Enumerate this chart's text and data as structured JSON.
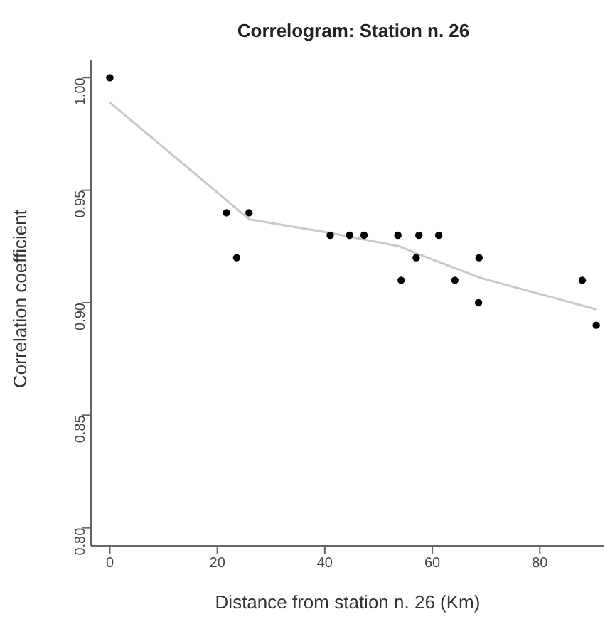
{
  "chart_data": {
    "type": "scatter",
    "title": "Correlogram: Station n. 26",
    "xlabel": "Distance from station n. 26 (Km)",
    "ylabel": "Correlation coefficient",
    "xlim": [
      -3.5,
      92
    ],
    "xticks": [
      0,
      20,
      40,
      60,
      80
    ],
    "ylim": [
      0.792,
      1.008
    ],
    "yticks": [
      {
        "value": 0.8,
        "label": "0.80"
      },
      0.85,
      {
        "value": 0.9,
        "label": "0.90"
      },
      0.95,
      {
        "value": 1.0,
        "label": "1.00"
      }
    ],
    "marker": "circle",
    "series": [
      {
        "color": "#000000",
        "x": [
          0,
          21.7,
          23.6,
          25.9,
          41.0,
          44.6,
          47.3,
          53.6,
          54.2,
          57.0,
          57.5,
          61.2,
          64.2,
          68.7,
          68.6,
          87.9,
          90.5
        ],
        "values": [
          1.0,
          0.94,
          0.92,
          0.94,
          0.93,
          0.93,
          0.93,
          0.93,
          0.91,
          0.92,
          0.93,
          0.93,
          0.91,
          0.92,
          0.9,
          0.91,
          0.89
        ]
      },
      {
        "type": "line",
        "color": "#c8c8c8",
        "marker": "none",
        "x": [
          0,
          26,
          41,
          54,
          57,
          69,
          90.6
        ],
        "values": [
          0.989,
          0.937,
          0.931,
          0.925,
          0.922,
          0.911,
          0.897
        ]
      }
    ]
  }
}
